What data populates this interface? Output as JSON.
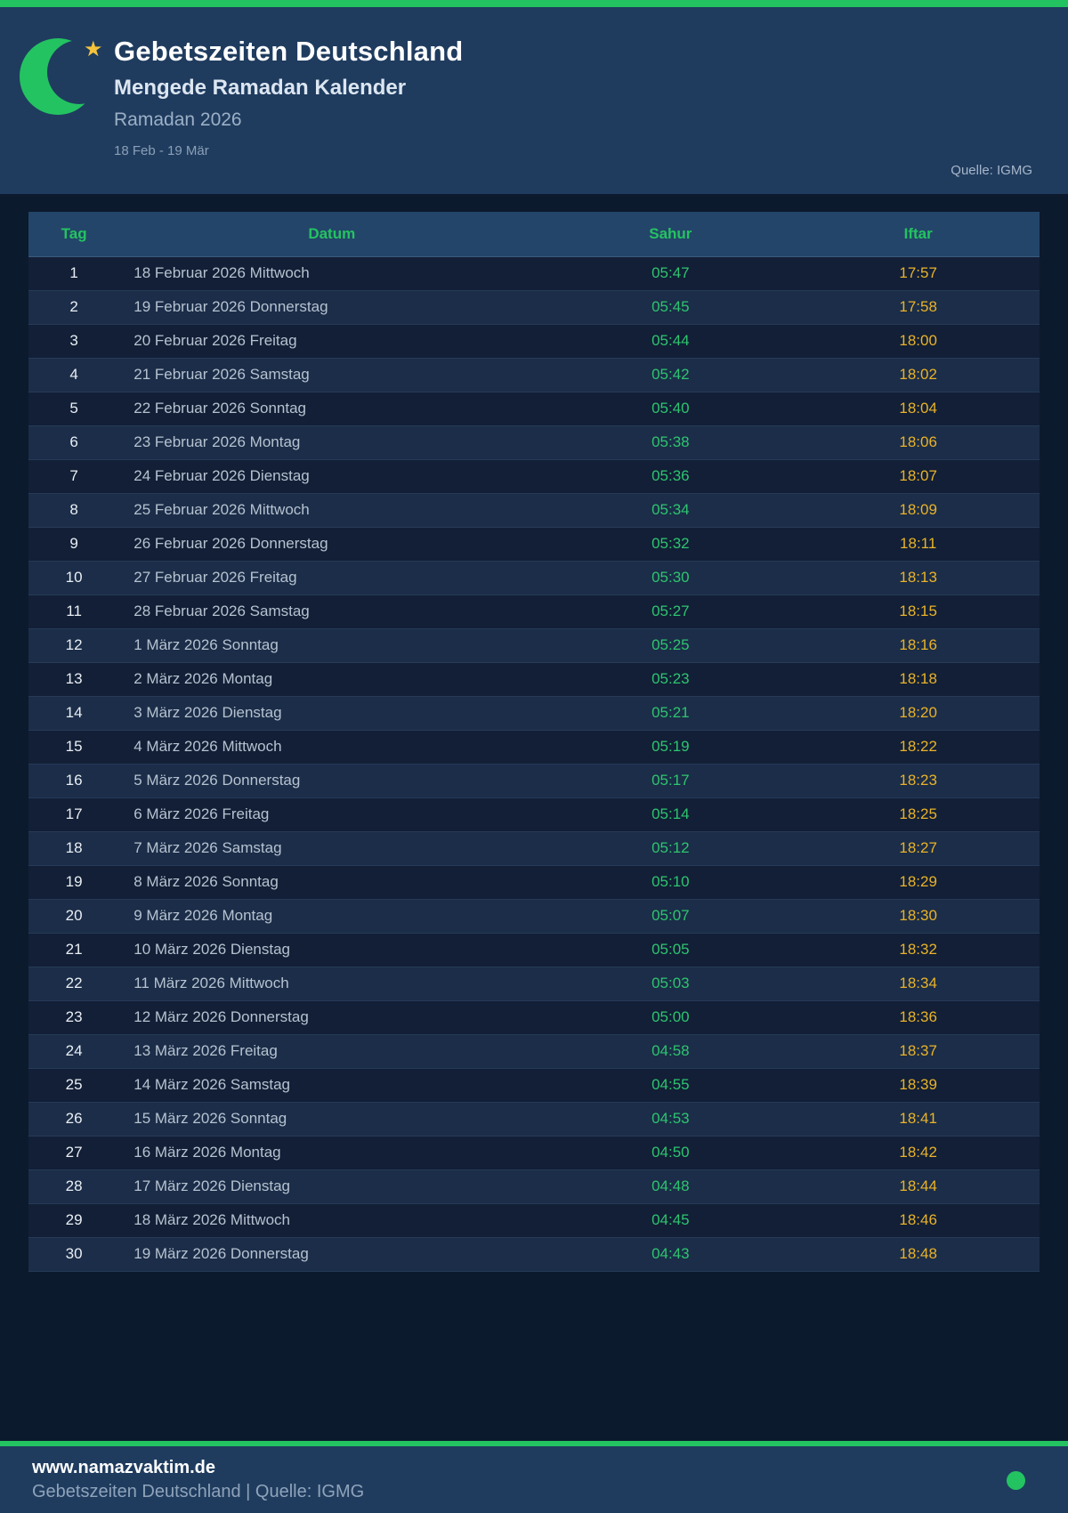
{
  "page": {
    "title": "Gebetszeiten Deutschland",
    "subtitle": "Mengede Ramadan Kalender",
    "period_label": "Ramadan 2026",
    "date_range": "18 Feb - 19 Mär",
    "source": "Quelle: IGMG"
  },
  "logo": {
    "icon": "crescent-moon-and-star",
    "star_glyph": "★"
  },
  "table": {
    "columns": [
      "Tag",
      "Datum",
      "Sahur",
      "Iftar"
    ],
    "rows": [
      {
        "day": 1,
        "date": "18 Februar 2026 Mittwoch",
        "sahur": "05:47",
        "iftar": "17:57"
      },
      {
        "day": 2,
        "date": "19 Februar 2026 Donnerstag",
        "sahur": "05:45",
        "iftar": "17:58"
      },
      {
        "day": 3,
        "date": "20 Februar 2026 Freitag",
        "sahur": "05:44",
        "iftar": "18:00"
      },
      {
        "day": 4,
        "date": "21 Februar 2026 Samstag",
        "sahur": "05:42",
        "iftar": "18:02"
      },
      {
        "day": 5,
        "date": "22 Februar 2026 Sonntag",
        "sahur": "05:40",
        "iftar": "18:04"
      },
      {
        "day": 6,
        "date": "23 Februar 2026 Montag",
        "sahur": "05:38",
        "iftar": "18:06"
      },
      {
        "day": 7,
        "date": "24 Februar 2026 Dienstag",
        "sahur": "05:36",
        "iftar": "18:07"
      },
      {
        "day": 8,
        "date": "25 Februar 2026 Mittwoch",
        "sahur": "05:34",
        "iftar": "18:09"
      },
      {
        "day": 9,
        "date": "26 Februar 2026 Donnerstag",
        "sahur": "05:32",
        "iftar": "18:11"
      },
      {
        "day": 10,
        "date": "27 Februar 2026 Freitag",
        "sahur": "05:30",
        "iftar": "18:13"
      },
      {
        "day": 11,
        "date": "28 Februar 2026 Samstag",
        "sahur": "05:27",
        "iftar": "18:15"
      },
      {
        "day": 12,
        "date": "1 März 2026 Sonntag",
        "sahur": "05:25",
        "iftar": "18:16"
      },
      {
        "day": 13,
        "date": "2 März 2026 Montag",
        "sahur": "05:23",
        "iftar": "18:18"
      },
      {
        "day": 14,
        "date": "3 März 2026 Dienstag",
        "sahur": "05:21",
        "iftar": "18:20"
      },
      {
        "day": 15,
        "date": "4 März 2026 Mittwoch",
        "sahur": "05:19",
        "iftar": "18:22"
      },
      {
        "day": 16,
        "date": "5 März 2026 Donnerstag",
        "sahur": "05:17",
        "iftar": "18:23"
      },
      {
        "day": 17,
        "date": "6 März 2026 Freitag",
        "sahur": "05:14",
        "iftar": "18:25"
      },
      {
        "day": 18,
        "date": "7 März 2026 Samstag",
        "sahur": "05:12",
        "iftar": "18:27"
      },
      {
        "day": 19,
        "date": "8 März 2026 Sonntag",
        "sahur": "05:10",
        "iftar": "18:29"
      },
      {
        "day": 20,
        "date": "9 März 2026 Montag",
        "sahur": "05:07",
        "iftar": "18:30"
      },
      {
        "day": 21,
        "date": "10 März 2026 Dienstag",
        "sahur": "05:05",
        "iftar": "18:32"
      },
      {
        "day": 22,
        "date": "11 März 2026 Mittwoch",
        "sahur": "05:03",
        "iftar": "18:34"
      },
      {
        "day": 23,
        "date": "12 März 2026 Donnerstag",
        "sahur": "05:00",
        "iftar": "18:36"
      },
      {
        "day": 24,
        "date": "13 März 2026 Freitag",
        "sahur": "04:58",
        "iftar": "18:37"
      },
      {
        "day": 25,
        "date": "14 März 2026 Samstag",
        "sahur": "04:55",
        "iftar": "18:39"
      },
      {
        "day": 26,
        "date": "15 März 2026 Sonntag",
        "sahur": "04:53",
        "iftar": "18:41"
      },
      {
        "day": 27,
        "date": "16 März 2026 Montag",
        "sahur": "04:50",
        "iftar": "18:42"
      },
      {
        "day": 28,
        "date": "17 März 2026 Dienstag",
        "sahur": "04:48",
        "iftar": "18:44"
      },
      {
        "day": 29,
        "date": "18 März 2026 Mittwoch",
        "sahur": "04:45",
        "iftar": "18:46"
      },
      {
        "day": 30,
        "date": "19 März 2026 Donnerstag",
        "sahur": "04:43",
        "iftar": "18:48"
      }
    ]
  },
  "footer": {
    "website": "www.namazvaktim.de",
    "tagline": "Gebetszeiten Deutschland | Quelle: IGMG"
  },
  "colors": {
    "accent_green": "#24c361",
    "sahur_green": "#2ec46f",
    "iftar_amber": "#e9b229",
    "header_bg": "#1f3c5f",
    "page_bg": "#0c1a2d",
    "table_header_bg": "#234569",
    "row_odd": "#121f36",
    "row_even": "#1b2d48",
    "star_gold": "#f5c33b"
  }
}
